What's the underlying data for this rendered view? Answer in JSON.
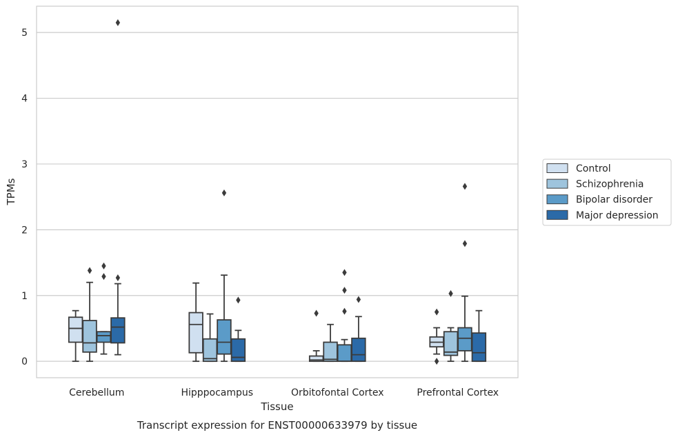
{
  "chart_data": {
    "type": "box",
    "caption": "Transcript expression for ENST00000633979 by tissue",
    "xlabel": "Tissue",
    "ylabel": "TPMs",
    "ylim": [
      -0.25,
      5.4
    ],
    "yticks": [
      0,
      1,
      2,
      3,
      4,
      5
    ],
    "grid": "horizontal",
    "legend_position": "right",
    "categories": [
      "Cerebellum",
      "Hipppocampus",
      "Orbitofontal Cortex",
      "Prefrontal Cortex"
    ],
    "series": [
      {
        "name": "Control",
        "color": "#d0e0f0",
        "boxes": [
          {
            "whisker_low": 0.0,
            "q1": 0.29,
            "median": 0.5,
            "q3": 0.67,
            "whisker_high": 0.77,
            "outliers": []
          },
          {
            "whisker_low": 0.0,
            "q1": 0.13,
            "median": 0.56,
            "q3": 0.74,
            "whisker_high": 1.19,
            "outliers": []
          },
          {
            "whisker_low": 0.0,
            "q1": 0.0,
            "median": 0.02,
            "q3": 0.08,
            "whisker_high": 0.16,
            "outliers": [
              0.73
            ]
          },
          {
            "whisker_low": 0.11,
            "q1": 0.22,
            "median": 0.29,
            "q3": 0.37,
            "whisker_high": 0.51,
            "outliers": [
              0.75,
              0.0
            ]
          }
        ]
      },
      {
        "name": "Schizophrenia",
        "color": "#9ec4dd",
        "boxes": [
          {
            "whisker_low": 0.0,
            "q1": 0.14,
            "median": 0.28,
            "q3": 0.62,
            "whisker_high": 1.2,
            "outliers": [
              1.38
            ]
          },
          {
            "whisker_low": 0.0,
            "q1": 0.0,
            "median": 0.04,
            "q3": 0.34,
            "whisker_high": 0.72,
            "outliers": []
          },
          {
            "whisker_low": 0.0,
            "q1": 0.0,
            "median": 0.03,
            "q3": 0.29,
            "whisker_high": 0.56,
            "outliers": []
          },
          {
            "whisker_low": 0.0,
            "q1": 0.09,
            "median": 0.14,
            "q3": 0.45,
            "whisker_high": 0.51,
            "outliers": [
              1.03
            ]
          }
        ]
      },
      {
        "name": "Bipolar disorder",
        "color": "#5b9bc8",
        "boxes": [
          {
            "whisker_low": 0.11,
            "q1": 0.29,
            "median": 0.39,
            "q3": 0.45,
            "whisker_high": 0.45,
            "outliers": [
              1.45,
              1.29
            ]
          },
          {
            "whisker_low": 0.0,
            "q1": 0.11,
            "median": 0.29,
            "q3": 0.63,
            "whisker_high": 1.31,
            "outliers": [
              2.56
            ]
          },
          {
            "whisker_low": 0.0,
            "q1": 0.0,
            "median": 0.0,
            "q3": 0.25,
            "whisker_high": 0.33,
            "outliers": [
              1.35,
              1.08,
              0.76
            ]
          },
          {
            "whisker_low": 0.0,
            "q1": 0.16,
            "median": 0.35,
            "q3": 0.51,
            "whisker_high": 0.99,
            "outliers": [
              2.66,
              1.79
            ]
          }
        ]
      },
      {
        "name": "Major depression",
        "color": "#2b6aa8",
        "boxes": [
          {
            "whisker_low": 0.1,
            "q1": 0.28,
            "median": 0.52,
            "q3": 0.66,
            "whisker_high": 1.18,
            "outliers": [
              1.27,
              5.15
            ]
          },
          {
            "whisker_low": 0.0,
            "q1": 0.0,
            "median": 0.06,
            "q3": 0.34,
            "whisker_high": 0.47,
            "outliers": [
              0.93
            ]
          },
          {
            "whisker_low": 0.0,
            "q1": 0.0,
            "median": 0.1,
            "q3": 0.35,
            "whisker_high": 0.68,
            "outliers": [
              0.94
            ]
          },
          {
            "whisker_low": 0.0,
            "q1": 0.0,
            "median": 0.13,
            "q3": 0.43,
            "whisker_high": 0.77,
            "outliers": []
          }
        ]
      }
    ]
  }
}
